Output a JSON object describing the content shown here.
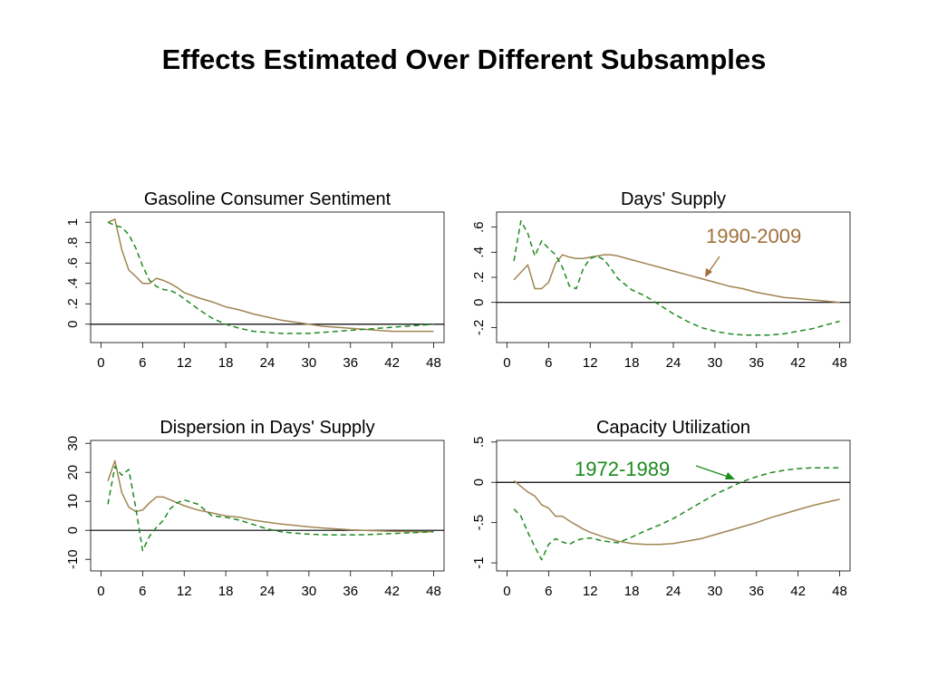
{
  "title": "Effects Estimated Over Different Subsamples",
  "colors": {
    "series_1990_2009": "#a08552",
    "series_1972_1989": "#1f8a1f",
    "annotation_1990": "#a0703a",
    "annotation_1972": "#1b8a1b",
    "zero_line": "#000000"
  },
  "annotations": {
    "label_1990": "1990-2009",
    "label_1972": "1972-1989"
  },
  "chart_data": [
    {
      "type": "line",
      "title": "Gasoline Consumer Sentiment",
      "x_ticks": [
        "0",
        "6",
        "12",
        "18",
        "24",
        "30",
        "36",
        "42",
        "48"
      ],
      "y_ticks": [
        "0",
        ".2",
        ".4",
        ".6",
        ".8",
        "1"
      ],
      "xlim": [
        -1.5,
        49.5
      ],
      "ylim": [
        -0.18,
        1.1
      ],
      "y_tick_values": [
        0,
        0.2,
        0.4,
        0.6,
        0.8,
        1.0
      ],
      "x_tick_values": [
        0,
        6,
        12,
        18,
        24,
        30,
        36,
        42,
        48
      ],
      "series": [
        {
          "name": "1990-2009",
          "style": "solid",
          "x": [
            1,
            2,
            3,
            4,
            5,
            6,
            7,
            8,
            9,
            10,
            11,
            12,
            14,
            16,
            18,
            20,
            22,
            24,
            26,
            28,
            30,
            32,
            34,
            36,
            38,
            40,
            42,
            44,
            46,
            48
          ],
          "y": [
            1.0,
            1.03,
            0.73,
            0.53,
            0.47,
            0.4,
            0.4,
            0.45,
            0.43,
            0.4,
            0.36,
            0.31,
            0.26,
            0.22,
            0.17,
            0.14,
            0.1,
            0.07,
            0.04,
            0.02,
            0.0,
            -0.02,
            -0.03,
            -0.04,
            -0.05,
            -0.06,
            -0.07,
            -0.07,
            -0.07,
            -0.07
          ]
        },
        {
          "name": "1972-1989",
          "style": "dashed",
          "x": [
            1,
            2,
            3,
            4,
            5,
            6,
            7,
            8,
            9,
            10,
            11,
            12,
            14,
            16,
            18,
            20,
            22,
            24,
            26,
            28,
            30,
            32,
            34,
            36,
            38,
            40,
            42,
            44,
            46,
            48
          ],
          "y": [
            1.0,
            0.97,
            0.95,
            0.88,
            0.75,
            0.57,
            0.43,
            0.37,
            0.34,
            0.33,
            0.3,
            0.25,
            0.15,
            0.06,
            0.0,
            -0.04,
            -0.07,
            -0.08,
            -0.09,
            -0.09,
            -0.09,
            -0.08,
            -0.07,
            -0.06,
            -0.05,
            -0.04,
            -0.03,
            -0.02,
            -0.01,
            0.0
          ]
        }
      ]
    },
    {
      "type": "line",
      "title": "Days' Supply",
      "x_ticks": [
        "0",
        "6",
        "12",
        "18",
        "24",
        "30",
        "36",
        "42",
        "48"
      ],
      "y_ticks": [
        "-.2",
        "0",
        ".2",
        ".4",
        ".6"
      ],
      "xlim": [
        -1.5,
        49.5
      ],
      "ylim": [
        -0.32,
        0.72
      ],
      "y_tick_values": [
        -0.2,
        0.0,
        0.2,
        0.4,
        0.6
      ],
      "x_tick_values": [
        0,
        6,
        12,
        18,
        24,
        30,
        36,
        42,
        48
      ],
      "series": [
        {
          "name": "1990-2009",
          "style": "solid",
          "x": [
            1,
            2,
            3,
            4,
            5,
            6,
            7,
            8,
            9,
            10,
            11,
            12,
            13,
            14,
            15,
            16,
            18,
            20,
            22,
            24,
            26,
            28,
            30,
            32,
            34,
            36,
            38,
            40,
            42,
            44,
            46,
            48
          ],
          "y": [
            0.18,
            0.24,
            0.3,
            0.11,
            0.11,
            0.16,
            0.31,
            0.38,
            0.36,
            0.35,
            0.35,
            0.36,
            0.37,
            0.38,
            0.38,
            0.37,
            0.34,
            0.31,
            0.28,
            0.25,
            0.22,
            0.19,
            0.16,
            0.13,
            0.11,
            0.08,
            0.06,
            0.04,
            0.03,
            0.02,
            0.01,
            0.0
          ]
        },
        {
          "name": "1972-1989",
          "style": "dashed",
          "x": [
            1,
            2,
            3,
            4,
            5,
            6,
            7,
            8,
            9,
            10,
            11,
            12,
            13,
            14,
            15,
            16,
            18,
            20,
            22,
            24,
            26,
            28,
            30,
            32,
            34,
            36,
            38,
            40,
            42,
            44,
            46,
            48
          ],
          "y": [
            0.33,
            0.65,
            0.55,
            0.37,
            0.49,
            0.43,
            0.38,
            0.28,
            0.13,
            0.11,
            0.27,
            0.35,
            0.37,
            0.34,
            0.27,
            0.19,
            0.1,
            0.05,
            -0.02,
            -0.09,
            -0.15,
            -0.2,
            -0.23,
            -0.25,
            -0.26,
            -0.26,
            -0.26,
            -0.25,
            -0.23,
            -0.21,
            -0.18,
            -0.15
          ]
        }
      ]
    },
    {
      "type": "line",
      "title": "Dispersion in Days' Supply",
      "x_ticks": [
        "0",
        "6",
        "12",
        "18",
        "24",
        "30",
        "36",
        "42",
        "48"
      ],
      "y_ticks": [
        "-10",
        "0",
        "10",
        "20",
        "30"
      ],
      "xlim": [
        -1.5,
        49.5
      ],
      "ylim": [
        -14,
        31
      ],
      "y_tick_values": [
        -10,
        0,
        10,
        20,
        30
      ],
      "x_tick_values": [
        0,
        6,
        12,
        18,
        24,
        30,
        36,
        42,
        48
      ],
      "series": [
        {
          "name": "1990-2009",
          "style": "solid",
          "x": [
            1,
            2,
            3,
            4,
            5,
            6,
            7,
            8,
            9,
            10,
            11,
            12,
            14,
            16,
            18,
            20,
            22,
            24,
            26,
            28,
            30,
            32,
            34,
            36,
            38,
            40,
            42,
            44,
            46,
            48
          ],
          "y": [
            17,
            24,
            13,
            8,
            6.5,
            7,
            9.5,
            11.5,
            11.5,
            10.5,
            9.5,
            8.5,
            7,
            6,
            5,
            4.5,
            3.5,
            2.8,
            2.2,
            1.7,
            1.2,
            0.8,
            0.5,
            0.2,
            0,
            -0.2,
            -0.3,
            -0.4,
            -0.5,
            -0.5
          ]
        },
        {
          "name": "1972-1989",
          "style": "dashed",
          "x": [
            1,
            2,
            3,
            4,
            5,
            6,
            7,
            8,
            9,
            10,
            11,
            12,
            14,
            16,
            18,
            20,
            22,
            24,
            26,
            28,
            30,
            32,
            34,
            36,
            38,
            40,
            42,
            44,
            46,
            48
          ],
          "y": [
            9,
            22,
            19,
            21,
            8,
            -7,
            -2,
            1,
            3.5,
            7.5,
            9.5,
            10.5,
            9,
            5,
            4.5,
            3.5,
            2,
            0.5,
            -0.5,
            -1,
            -1.3,
            -1.5,
            -1.6,
            -1.6,
            -1.5,
            -1.3,
            -1.1,
            -0.9,
            -0.7,
            -0.5
          ]
        }
      ]
    },
    {
      "type": "line",
      "title": "Capacity Utilization",
      "x_ticks": [
        "0",
        "6",
        "12",
        "18",
        "24",
        "30",
        "36",
        "42",
        "48"
      ],
      "y_ticks": [
        "-1",
        "-.5",
        "0",
        ".5"
      ],
      "xlim": [
        -1.5,
        49.5
      ],
      "ylim": [
        -1.1,
        0.52
      ],
      "y_tick_values": [
        -1.0,
        -0.5,
        0.0,
        0.5
      ],
      "x_tick_values": [
        0,
        6,
        12,
        18,
        24,
        30,
        36,
        42,
        48
      ],
      "series": [
        {
          "name": "1990-2009",
          "style": "solid",
          "x": [
            1,
            2,
            3,
            4,
            5,
            6,
            7,
            8,
            9,
            10,
            11,
            12,
            14,
            16,
            18,
            20,
            22,
            24,
            26,
            28,
            30,
            32,
            34,
            36,
            38,
            40,
            42,
            44,
            46,
            48
          ],
          "y": [
            0.02,
            -0.05,
            -0.12,
            -0.17,
            -0.28,
            -0.32,
            -0.42,
            -0.42,
            -0.48,
            -0.53,
            -0.58,
            -0.62,
            -0.68,
            -0.73,
            -0.76,
            -0.77,
            -0.77,
            -0.76,
            -0.73,
            -0.7,
            -0.65,
            -0.6,
            -0.55,
            -0.5,
            -0.44,
            -0.39,
            -0.34,
            -0.29,
            -0.25,
            -0.21
          ]
        },
        {
          "name": "1972-1989",
          "style": "dashed",
          "x": [
            1,
            2,
            3,
            4,
            5,
            6,
            7,
            8,
            9,
            10,
            11,
            12,
            14,
            16,
            18,
            20,
            22,
            24,
            26,
            28,
            30,
            32,
            34,
            36,
            38,
            40,
            42,
            44,
            46,
            48
          ],
          "y": [
            -0.33,
            -0.42,
            -0.62,
            -0.8,
            -0.96,
            -0.77,
            -0.7,
            -0.74,
            -0.77,
            -0.72,
            -0.7,
            -0.69,
            -0.73,
            -0.75,
            -0.68,
            -0.6,
            -0.53,
            -0.45,
            -0.35,
            -0.25,
            -0.15,
            -0.07,
            0.01,
            0.07,
            0.12,
            0.15,
            0.17,
            0.18,
            0.18,
            0.18
          ]
        }
      ]
    }
  ]
}
